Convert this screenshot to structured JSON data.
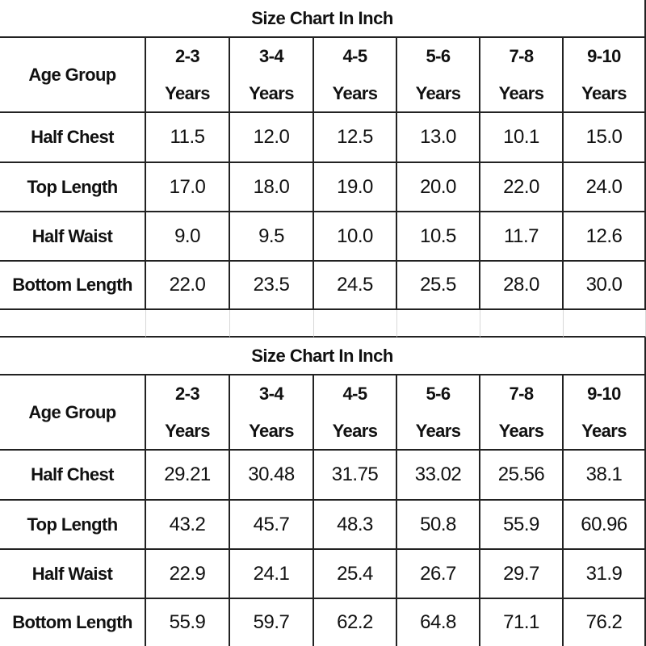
{
  "tables": [
    {
      "title": "Size Chart In Inch",
      "header": {
        "label": "Age Group",
        "columns": [
          {
            "range": "2-3",
            "unit": "Years"
          },
          {
            "range": "3-4",
            "unit": "Years"
          },
          {
            "range": "4-5",
            "unit": "Years"
          },
          {
            "range": "5-6",
            "unit": "Years"
          },
          {
            "range": "7-8",
            "unit": "Years"
          },
          {
            "range": "9-10",
            "unit": "Years"
          }
        ]
      },
      "rows": [
        {
          "label": "Half Chest",
          "values": [
            "11.5",
            "12.0",
            "12.5",
            "13.0",
            "10.1",
            "15.0"
          ]
        },
        {
          "label": "Top Length",
          "values": [
            "17.0",
            "18.0",
            "19.0",
            "20.0",
            "22.0",
            "24.0"
          ]
        },
        {
          "label": "Half Waist",
          "values": [
            "9.0",
            "9.5",
            "10.0",
            "10.5",
            "11.7",
            "12.6"
          ]
        },
        {
          "label": "Bottom Length",
          "values": [
            "22.0",
            "23.5",
            "24.5",
            "25.5",
            "28.0",
            "30.0"
          ]
        }
      ]
    },
    {
      "title": "Size Chart In Inch",
      "header": {
        "label": "Age Group",
        "columns": [
          {
            "range": "2-3",
            "unit": "Years"
          },
          {
            "range": "3-4",
            "unit": "Years"
          },
          {
            "range": "4-5",
            "unit": "Years"
          },
          {
            "range": "5-6",
            "unit": "Years"
          },
          {
            "range": "7-8",
            "unit": "Years"
          },
          {
            "range": "9-10",
            "unit": "Years"
          }
        ]
      },
      "rows": [
        {
          "label": "Half Chest",
          "values": [
            "29.21",
            "30.48",
            "31.75",
            "33.02",
            "25.56",
            "38.1"
          ]
        },
        {
          "label": "Top Length",
          "values": [
            "43.2",
            "45.7",
            "48.3",
            "50.8",
            "55.9",
            "60.96"
          ]
        },
        {
          "label": "Half Waist",
          "values": [
            "22.9",
            "24.1",
            "25.4",
            "26.7",
            "29.7",
            "31.9"
          ]
        },
        {
          "label": "Bottom Length",
          "values": [
            "55.9",
            "59.7",
            "62.2",
            "64.8",
            "71.1",
            "76.2"
          ]
        }
      ]
    }
  ]
}
